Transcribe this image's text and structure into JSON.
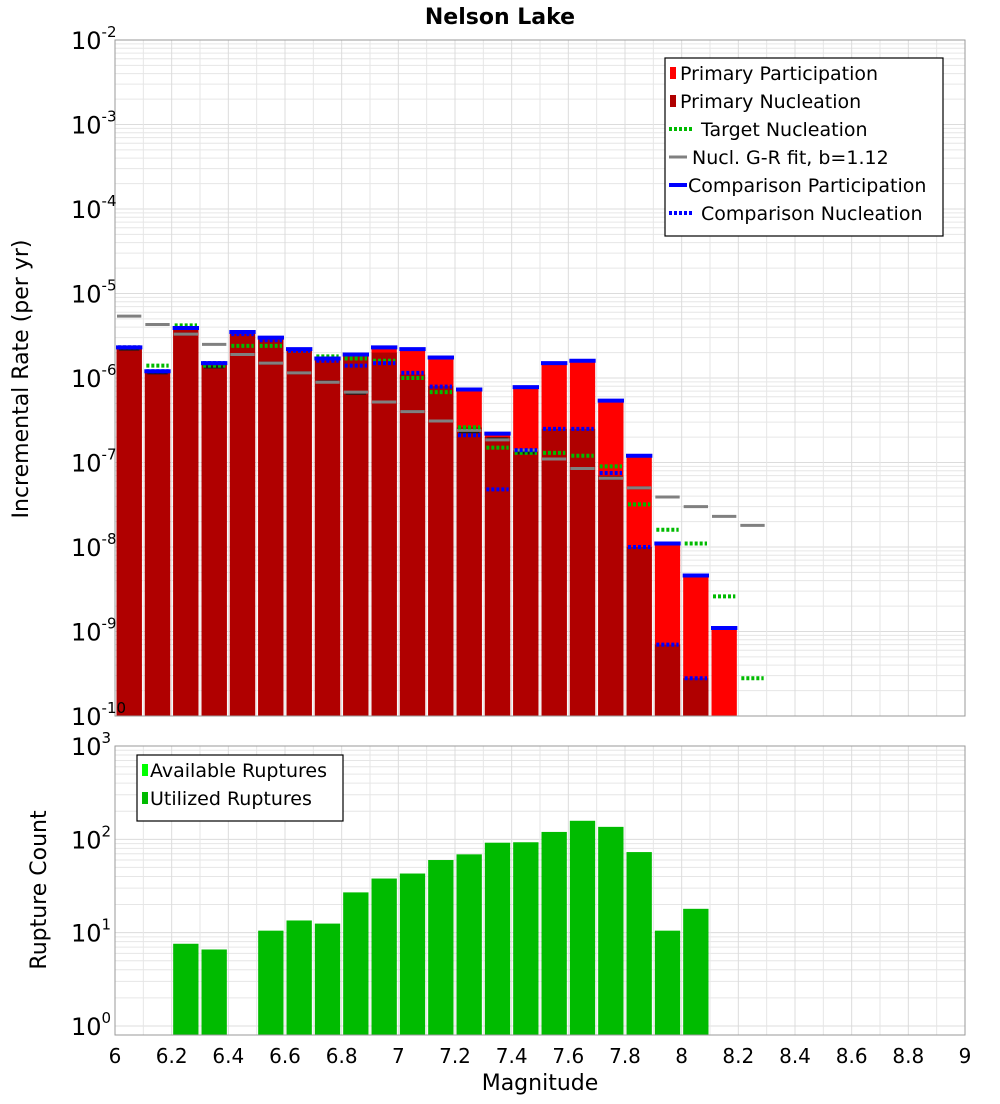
{
  "title": "Nelson Lake",
  "colors": {
    "primary_participation": "#ff0000",
    "primary_nucleation": "#b00000",
    "target_nucleation": "#00bb00",
    "gr_fit": "#808080",
    "comparison": "#0000ff",
    "available_ruptures": "#00ff00",
    "utilized_ruptures": "#00bb00",
    "subsection_line": "#1a1a1a",
    "grid": "#e6e6e6"
  },
  "chart_data": [
    {
      "type": "bar",
      "panel": "top",
      "title": "Nelson Lake",
      "xlabel": "",
      "ylabel": "Incremental Rate (per yr)",
      "yscale": "log",
      "xlim": [
        6,
        9
      ],
      "ylim": [
        1e-10,
        0.01
      ],
      "ytick_mantissa": "10",
      "ytick_exponents": [
        "-10",
        "-9",
        "-8",
        "-7",
        "-6",
        "-5",
        "-4",
        "-3",
        "-2"
      ],
      "grid": true,
      "legend": {
        "placement": "top-right",
        "entries": [
          "Primary Participation",
          "Primary Nucleation",
          "Target Nucleation",
          "Nucl. G-R fit, b=1.12",
          "Comparison Participation",
          "Comparison Nucleation"
        ]
      },
      "series": [
        {
          "name": "Primary Participation",
          "style": "bar",
          "points": [
            [
              6.05,
              2.3e-06
            ],
            [
              6.15,
              1.2e-06
            ],
            [
              6.25,
              3.9e-06
            ],
            [
              6.35,
              1.5e-06
            ],
            [
              6.45,
              3.5e-06
            ],
            [
              6.55,
              3e-06
            ],
            [
              6.65,
              2.2e-06
            ],
            [
              6.75,
              1.7e-06
            ],
            [
              6.85,
              1.9e-06
            ],
            [
              6.95,
              2.3e-06
            ],
            [
              7.05,
              2.2e-06
            ],
            [
              7.15,
              1.75e-06
            ],
            [
              7.25,
              7.3e-07
            ],
            [
              7.35,
              2.2e-07
            ],
            [
              7.45,
              7.8e-07
            ],
            [
              7.55,
              1.5e-06
            ],
            [
              7.65,
              1.6e-06
            ],
            [
              7.75,
              5.4e-07
            ],
            [
              7.85,
              1.2e-07
            ],
            [
              7.95,
              1.1e-08
            ],
            [
              8.05,
              4.6e-09
            ],
            [
              8.15,
              1.1e-09
            ]
          ]
        },
        {
          "name": "Primary Nucleation",
          "style": "bar",
          "points": [
            [
              6.05,
              2.3e-06
            ],
            [
              6.15,
              1.2e-06
            ],
            [
              6.25,
              3.9e-06
            ],
            [
              6.35,
              1.5e-06
            ],
            [
              6.45,
              3.5e-06
            ],
            [
              6.55,
              3e-06
            ],
            [
              6.65,
              2.2e-06
            ],
            [
              6.75,
              1.7e-06
            ],
            [
              6.85,
              1.9e-06
            ],
            [
              6.95,
              2e-06
            ],
            [
              7.05,
              1.1e-06
            ],
            [
              7.15,
              8e-07
            ],
            [
              7.25,
              2.6e-07
            ],
            [
              7.35,
              2e-07
            ],
            [
              7.45,
              1.4e-07
            ],
            [
              7.55,
              2.5e-07
            ],
            [
              7.65,
              2.5e-07
            ],
            [
              7.75,
              7e-08
            ],
            [
              7.85,
              1e-08
            ],
            [
              7.95,
              7e-10
            ],
            [
              8.05,
              2.8e-10
            ]
          ]
        },
        {
          "name": "Target Nucleation",
          "style": "dotted",
          "points": [
            [
              6.05,
              2.3e-06
            ],
            [
              6.15,
              1.4e-06
            ],
            [
              6.25,
              4.2e-06
            ],
            [
              6.35,
              1.4e-06
            ],
            [
              6.45,
              2.4e-06
            ],
            [
              6.55,
              2.4e-06
            ],
            [
              6.65,
              2.1e-06
            ],
            [
              6.75,
              1.8e-06
            ],
            [
              6.85,
              1.7e-06
            ],
            [
              6.95,
              1.6e-06
            ],
            [
              7.05,
              1e-06
            ],
            [
              7.15,
              6.8e-07
            ],
            [
              7.25,
              2.6e-07
            ],
            [
              7.35,
              1.5e-07
            ],
            [
              7.45,
              1.3e-07
            ],
            [
              7.55,
              1.3e-07
            ],
            [
              7.65,
              1.2e-07
            ],
            [
              7.75,
              9e-08
            ],
            [
              7.85,
              3.2e-08
            ],
            [
              7.95,
              1.6e-08
            ],
            [
              8.05,
              1.1e-08
            ],
            [
              8.15,
              2.6e-09
            ],
            [
              8.25,
              2.8e-10
            ]
          ]
        },
        {
          "name": "Nucl. G-R fit, b=1.12",
          "style": "dash",
          "points": [
            [
              6.05,
              5.4e-06
            ],
            [
              6.15,
              4.3e-06
            ],
            [
              6.25,
              3.3e-06
            ],
            [
              6.35,
              2.5e-06
            ],
            [
              6.45,
              1.9e-06
            ],
            [
              6.55,
              1.5e-06
            ],
            [
              6.65,
              1.15e-06
            ],
            [
              6.75,
              8.9e-07
            ],
            [
              6.85,
              6.8e-07
            ],
            [
              6.95,
              5.2e-07
            ],
            [
              7.05,
              4e-07
            ],
            [
              7.15,
              3.1e-07
            ],
            [
              7.25,
              2.4e-07
            ],
            [
              7.35,
              1.85e-07
            ],
            [
              7.45,
              1.4e-07
            ],
            [
              7.55,
              1.1e-07
            ],
            [
              7.65,
              8.5e-08
            ],
            [
              7.75,
              6.5e-08
            ],
            [
              7.85,
              5e-08
            ],
            [
              7.95,
              3.9e-08
            ],
            [
              8.05,
              3e-08
            ],
            [
              8.15,
              2.3e-08
            ],
            [
              8.25,
              1.8e-08
            ]
          ]
        },
        {
          "name": "Comparison Participation",
          "style": "solid",
          "points": [
            [
              6.05,
              2.3e-06
            ],
            [
              6.15,
              1.2e-06
            ],
            [
              6.25,
              3.9e-06
            ],
            [
              6.35,
              1.5e-06
            ],
            [
              6.45,
              3.5e-06
            ],
            [
              6.55,
              3e-06
            ],
            [
              6.65,
              2.2e-06
            ],
            [
              6.75,
              1.7e-06
            ],
            [
              6.85,
              1.9e-06
            ],
            [
              6.95,
              2.3e-06
            ],
            [
              7.05,
              2.2e-06
            ],
            [
              7.15,
              1.75e-06
            ],
            [
              7.25,
              7.3e-07
            ],
            [
              7.35,
              2.2e-07
            ],
            [
              7.45,
              7.8e-07
            ],
            [
              7.55,
              1.5e-06
            ],
            [
              7.65,
              1.6e-06
            ],
            [
              7.75,
              5.4e-07
            ],
            [
              7.85,
              1.2e-07
            ],
            [
              7.95,
              1.1e-08
            ],
            [
              8.05,
              4.6e-09
            ],
            [
              8.15,
              1.1e-09
            ]
          ]
        },
        {
          "name": "Comparison Nucleation",
          "style": "dotted",
          "points": [
            [
              6.05,
              2.3e-06
            ],
            [
              6.15,
              1.2e-06
            ],
            [
              6.25,
              3.9e-06
            ],
            [
              6.35,
              1.5e-06
            ],
            [
              6.45,
              3.3e-06
            ],
            [
              6.55,
              2.8e-06
            ],
            [
              6.65,
              2.1e-06
            ],
            [
              6.75,
              1.6e-06
            ],
            [
              6.85,
              1.4e-06
            ],
            [
              6.95,
              1.5e-06
            ],
            [
              7.05,
              1.15e-06
            ],
            [
              7.15,
              7.9e-07
            ],
            [
              7.25,
              2.1e-07
            ],
            [
              7.35,
              4.8e-08
            ],
            [
              7.45,
              1.4e-07
            ],
            [
              7.55,
              2.5e-07
            ],
            [
              7.65,
              2.5e-07
            ],
            [
              7.75,
              7.5e-08
            ],
            [
              7.85,
              1e-08
            ],
            [
              7.95,
              7e-10
            ],
            [
              8.05,
              2.8e-10
            ]
          ]
        },
        {
          "style": "subsection",
          "points": [
            [
              6.05,
              2.2e-06
            ],
            [
              6.15,
              1.15e-06
            ],
            [
              6.25,
              3.3e-06
            ],
            [
              6.35,
              1.35e-06
            ],
            [
              6.45,
              1.9e-06
            ],
            [
              6.55,
              1.5e-06
            ],
            [
              6.65,
              1.15e-06
            ],
            [
              6.75,
              9e-07
            ],
            [
              6.85,
              6.6e-07
            ],
            [
              6.95,
              5.2e-07
            ],
            [
              7.05,
              4e-07
            ],
            [
              7.15,
              3.1e-07
            ],
            [
              7.25,
              2.3e-07
            ],
            [
              7.35,
              1.9e-07
            ],
            [
              7.45,
              1.3e-07
            ],
            [
              7.55,
              1.1e-07
            ],
            [
              7.65,
              8.5e-08
            ],
            [
              7.75,
              6.5e-08
            ],
            [
              7.85,
              5e-08
            ]
          ]
        }
      ]
    },
    {
      "type": "bar",
      "panel": "bottom",
      "xlabel": "Magnitude",
      "ylabel": "Rupture Count",
      "yscale": "log",
      "xlim": [
        6,
        9
      ],
      "ylim": [
        0.8,
        1000
      ],
      "ytick_mantissa": "10",
      "ytick_exponents": [
        "0",
        "1",
        "2",
        "3"
      ],
      "xticks": [
        "6",
        "6.2",
        "6.4",
        "6.6",
        "6.8",
        "7",
        "7.2",
        "7.4",
        "7.6",
        "7.8",
        "8",
        "8.2",
        "8.4",
        "8.6",
        "8.8",
        "9"
      ],
      "grid": true,
      "legend": {
        "placement": "top-left",
        "entries": [
          "Available Ruptures",
          "Utilized Ruptures"
        ]
      },
      "series": [
        {
          "name": "Utilized Ruptures",
          "style": "bar",
          "points": [
            [
              6.25,
              7.6
            ],
            [
              6.35,
              6.6
            ],
            [
              6.55,
              10.5
            ],
            [
              6.65,
              13.5
            ],
            [
              6.75,
              12.5
            ],
            [
              6.85,
              27
            ],
            [
              6.95,
              38
            ],
            [
              7.05,
              43
            ],
            [
              7.15,
              60
            ],
            [
              7.25,
              69
            ],
            [
              7.35,
              92
            ],
            [
              7.45,
              93
            ],
            [
              7.55,
              120
            ],
            [
              7.65,
              158
            ],
            [
              7.75,
              136
            ],
            [
              7.85,
              73
            ],
            [
              7.95,
              10.5
            ],
            [
              8.05,
              18
            ]
          ]
        }
      ]
    }
  ]
}
